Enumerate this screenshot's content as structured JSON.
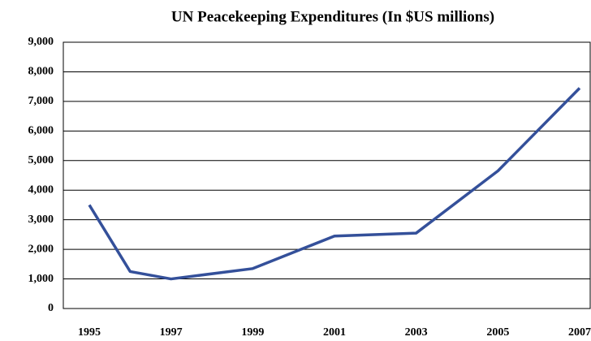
{
  "chart_data": {
    "type": "line",
    "title": "UN Peacekeeping Expenditures (In $US millions)",
    "x": [
      1995,
      1996,
      1997,
      1999,
      2001,
      2003,
      2005,
      2007
    ],
    "series": [
      {
        "name": "Expenditures",
        "color": "#34509a",
        "values": [
          3500,
          1250,
          1000,
          1350,
          2450,
          2550,
          4650,
          7450
        ]
      }
    ],
    "xlim": [
      1995,
      2007
    ],
    "xticks": [
      1995,
      1997,
      1999,
      2001,
      2003,
      2005,
      2007
    ],
    "ylim": [
      0,
      9000
    ],
    "yticks": [
      0,
      {
        "value": 1000,
        "label": "1,000"
      },
      {
        "value": 2000,
        "label": "2,000"
      },
      {
        "value": 3000,
        "label": "3,000"
      },
      {
        "value": 4000,
        "label": "4,000"
      },
      {
        "value": 5000,
        "label": "5,000"
      },
      {
        "value": 6000,
        "label": "6,000"
      },
      {
        "value": 7000,
        "label": "7,000"
      },
      {
        "value": 8000,
        "label": "8,000"
      },
      {
        "value": 9000,
        "label": "9,000"
      }
    ],
    "grid": true
  }
}
